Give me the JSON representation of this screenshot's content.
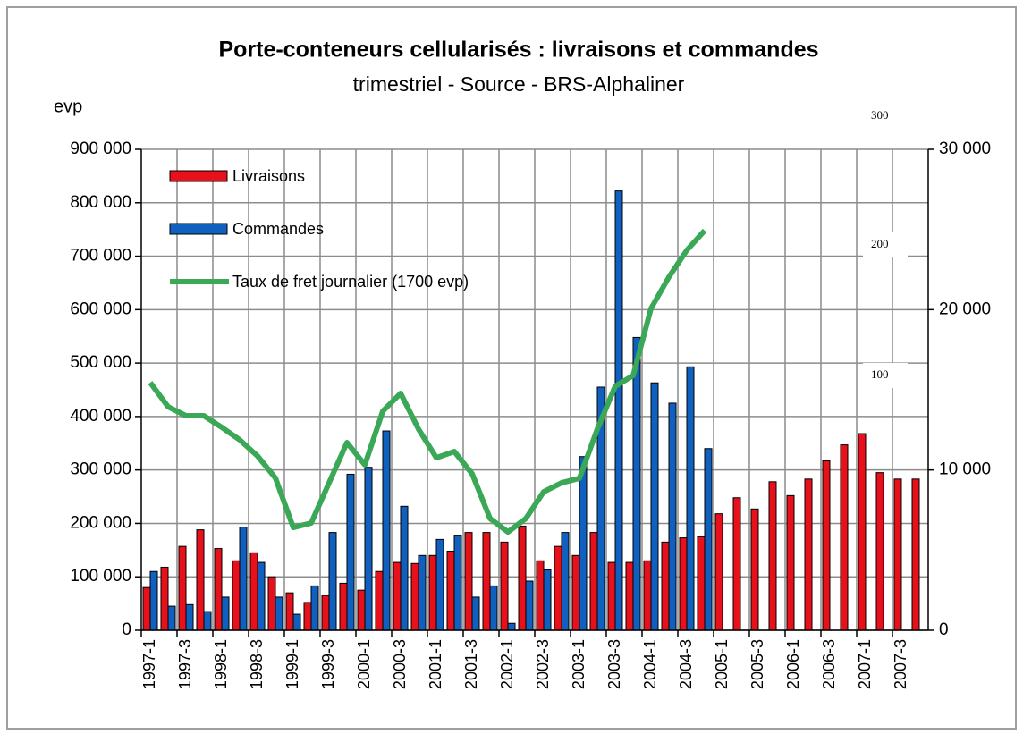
{
  "chart_data": {
    "type": "bar",
    "title": "Porte-conteneurs cellularisés : livraisons et commandes",
    "subtitle": "trimestriel - Source - BRS-Alphaliner",
    "y_label": "evp",
    "annotations": [
      "300",
      "200",
      "100"
    ],
    "categories": [
      "1997-1",
      null,
      "1997-3",
      null,
      "1998-1",
      null,
      "1998-3",
      null,
      "1999-1",
      null,
      "1999-3",
      null,
      "2000-1",
      null,
      "2000-3",
      null,
      "2001-1",
      null,
      "2001-3",
      null,
      "2002-1",
      null,
      "2002-3",
      null,
      "2003-1",
      null,
      "2003-3",
      null,
      "2004-1",
      null,
      "2004-3",
      null,
      "2005-1",
      null,
      "2005-3",
      null,
      "2006-1",
      null,
      "2006-3",
      null,
      "2007-1",
      null,
      "2007-3",
      null
    ],
    "series": [
      {
        "name": "Livraisons",
        "color": "#e8101a",
        "type": "bar",
        "values": [
          80000,
          118000,
          157000,
          188000,
          153000,
          130000,
          145000,
          100000,
          70000,
          52000,
          65000,
          88000,
          75000,
          110000,
          127000,
          125000,
          140000,
          148000,
          183000,
          183000,
          165000,
          195000,
          130000,
          157000,
          140000,
          183000,
          127000,
          127000,
          130000,
          165000,
          173000,
          175000,
          218000,
          248000,
          227000,
          278000,
          252000,
          283000,
          317000,
          347000,
          368000,
          295000,
          283000,
          283000
        ]
      },
      {
        "name": "Commandes",
        "color": "#1060c0",
        "type": "bar",
        "values": [
          110000,
          45000,
          48000,
          35000,
          62000,
          193000,
          127000,
          62000,
          30000,
          83000,
          183000,
          292000,
          305000,
          373000,
          232000,
          140000,
          170000,
          178000,
          62000,
          83000,
          13000,
          92000,
          113000,
          183000,
          325000,
          455000,
          822000,
          548000,
          463000,
          425000,
          493000,
          340000,
          null,
          null,
          null,
          null,
          null,
          null,
          null,
          null,
          null,
          null,
          null,
          null
        ]
      },
      {
        "name": "Taux de fret journalier (1700 evp)",
        "color": "#3aa856",
        "type": "line",
        "axis": "y2",
        "values": [
          15450,
          13940,
          13380,
          13380,
          12660,
          11880,
          10870,
          9500,
          6410,
          6690,
          9200,
          11710,
          10320,
          13660,
          14780,
          12550,
          10760,
          11150,
          9760,
          6970,
          6130,
          6970,
          8640,
          9200,
          9480,
          12550,
          15220,
          15890,
          20070,
          22030,
          23700,
          24930,
          null,
          null,
          null,
          null,
          null,
          null,
          null,
          null,
          null,
          null,
          null,
          null
        ]
      }
    ],
    "ylim": [
      0,
      900000
    ],
    "yticks": [
      0,
      {
        "value": 100000,
        "label": "100 000"
      },
      {
        "value": 200000,
        "label": "200 000"
      },
      {
        "value": 300000,
        "label": "300 000"
      },
      {
        "value": 400000,
        "label": "400 000"
      },
      {
        "value": 500000,
        "label": "500 000"
      },
      {
        "value": 600000,
        "label": "600 000"
      },
      {
        "value": 700000,
        "label": "700 000"
      },
      {
        "value": 800000,
        "label": "800 000"
      },
      {
        "value": 900000,
        "label": "900 000"
      }
    ],
    "y2lim": [
      0,
      30000
    ],
    "y2ticks": [
      0,
      {
        "value": 10000,
        "label": "10 000"
      },
      {
        "value": 20000,
        "label": "20 000"
      },
      {
        "value": 30000,
        "label": "30 000"
      }
    ],
    "grid": true,
    "legend": "top-left"
  }
}
